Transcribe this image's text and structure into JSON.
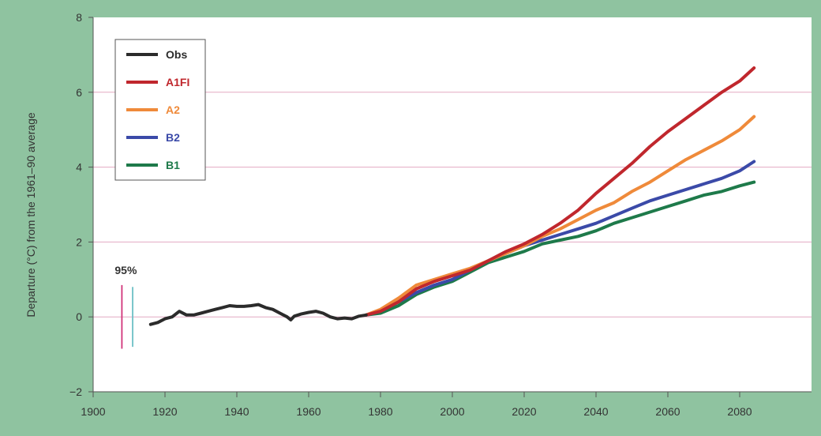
{
  "chart_data": {
    "type": "line",
    "title": "",
    "xlabel": "",
    "ylabel": "Departure (°C) from the 1961–90 average",
    "xlim": [
      1900,
      2100
    ],
    "ylim": [
      -2,
      8
    ],
    "x_ticks": [
      1900,
      1920,
      1940,
      1960,
      1980,
      2000,
      2020,
      2040,
      2060,
      2080
    ],
    "y_ticks": [
      -2,
      0,
      2,
      4,
      6,
      8
    ],
    "grid": "horizontal",
    "legend_position": "top-left",
    "series": [
      {
        "name": "Obs",
        "color": "#2b2b2b",
        "points": [
          [
            1916,
            -0.2
          ],
          [
            1918,
            -0.15
          ],
          [
            1920,
            -0.05
          ],
          [
            1922,
            0.0
          ],
          [
            1924,
            0.15
          ],
          [
            1926,
            0.05
          ],
          [
            1928,
            0.05
          ],
          [
            1930,
            0.1
          ],
          [
            1932,
            0.15
          ],
          [
            1934,
            0.2
          ],
          [
            1936,
            0.25
          ],
          [
            1938,
            0.3
          ],
          [
            1940,
            0.28
          ],
          [
            1942,
            0.28
          ],
          [
            1944,
            0.3
          ],
          [
            1946,
            0.33
          ],
          [
            1948,
            0.25
          ],
          [
            1950,
            0.2
          ],
          [
            1952,
            0.1
          ],
          [
            1954,
            0.0
          ],
          [
            1955,
            -0.08
          ],
          [
            1956,
            0.02
          ],
          [
            1958,
            0.08
          ],
          [
            1960,
            0.12
          ],
          [
            1962,
            0.15
          ],
          [
            1964,
            0.1
          ],
          [
            1966,
            0.0
          ],
          [
            1968,
            -0.05
          ],
          [
            1970,
            -0.03
          ],
          [
            1972,
            -0.05
          ],
          [
            1974,
            0.02
          ],
          [
            1976,
            0.05
          ]
        ]
      },
      {
        "name": "A1FI",
        "color": "#c0272d",
        "points": [
          [
            1976,
            0.05
          ],
          [
            1980,
            0.15
          ],
          [
            1985,
            0.4
          ],
          [
            1990,
            0.75
          ],
          [
            1995,
            0.95
          ],
          [
            2000,
            1.1
          ],
          [
            2005,
            1.25
          ],
          [
            2010,
            1.5
          ],
          [
            2015,
            1.75
          ],
          [
            2020,
            1.95
          ],
          [
            2025,
            2.2
          ],
          [
            2030,
            2.5
          ],
          [
            2035,
            2.85
          ],
          [
            2040,
            3.3
          ],
          [
            2045,
            3.7
          ],
          [
            2050,
            4.1
          ],
          [
            2055,
            4.55
          ],
          [
            2060,
            4.95
          ],
          [
            2065,
            5.3
          ],
          [
            2070,
            5.65
          ],
          [
            2075,
            6.0
          ],
          [
            2080,
            6.3
          ],
          [
            2084,
            6.65
          ]
        ]
      },
      {
        "name": "A2",
        "color": "#ef8a3a",
        "points": [
          [
            1976,
            0.05
          ],
          [
            1980,
            0.2
          ],
          [
            1985,
            0.5
          ],
          [
            1990,
            0.85
          ],
          [
            1995,
            1.0
          ],
          [
            2000,
            1.15
          ],
          [
            2005,
            1.3
          ],
          [
            2010,
            1.5
          ],
          [
            2015,
            1.7
          ],
          [
            2020,
            1.9
          ],
          [
            2025,
            2.15
          ],
          [
            2030,
            2.35
          ],
          [
            2035,
            2.6
          ],
          [
            2040,
            2.85
          ],
          [
            2045,
            3.05
          ],
          [
            2050,
            3.35
          ],
          [
            2055,
            3.6
          ],
          [
            2060,
            3.9
          ],
          [
            2065,
            4.2
          ],
          [
            2070,
            4.45
          ],
          [
            2075,
            4.7
          ],
          [
            2080,
            5.0
          ],
          [
            2084,
            5.35
          ]
        ]
      },
      {
        "name": "B2",
        "color": "#3b4aa8",
        "points": [
          [
            1976,
            0.05
          ],
          [
            1980,
            0.15
          ],
          [
            1985,
            0.4
          ],
          [
            1990,
            0.65
          ],
          [
            1995,
            0.85
          ],
          [
            2000,
            1.0
          ],
          [
            2005,
            1.25
          ],
          [
            2010,
            1.5
          ],
          [
            2015,
            1.7
          ],
          [
            2020,
            1.9
          ],
          [
            2025,
            2.05
          ],
          [
            2030,
            2.2
          ],
          [
            2035,
            2.35
          ],
          [
            2040,
            2.5
          ],
          [
            2045,
            2.7
          ],
          [
            2050,
            2.9
          ],
          [
            2055,
            3.1
          ],
          [
            2060,
            3.25
          ],
          [
            2065,
            3.4
          ],
          [
            2070,
            3.55
          ],
          [
            2075,
            3.7
          ],
          [
            2080,
            3.9
          ],
          [
            2084,
            4.15
          ]
        ]
      },
      {
        "name": "B1",
        "color": "#1e7a4a",
        "points": [
          [
            1976,
            0.05
          ],
          [
            1980,
            0.1
          ],
          [
            1985,
            0.3
          ],
          [
            1990,
            0.6
          ],
          [
            1995,
            0.8
          ],
          [
            2000,
            0.95
          ],
          [
            2005,
            1.2
          ],
          [
            2010,
            1.45
          ],
          [
            2015,
            1.6
          ],
          [
            2020,
            1.75
          ],
          [
            2025,
            1.95
          ],
          [
            2030,
            2.05
          ],
          [
            2035,
            2.15
          ],
          [
            2040,
            2.3
          ],
          [
            2045,
            2.5
          ],
          [
            2050,
            2.65
          ],
          [
            2055,
            2.8
          ],
          [
            2060,
            2.95
          ],
          [
            2065,
            3.1
          ],
          [
            2070,
            3.25
          ],
          [
            2075,
            3.35
          ],
          [
            2080,
            3.5
          ],
          [
            2084,
            3.6
          ]
        ]
      }
    ],
    "annotations": [
      {
        "label": "95%",
        "bars": [
          {
            "x": 1908,
            "y_low": -0.85,
            "y_high": 0.85,
            "color": "#d1347a"
          },
          {
            "x": 1911,
            "y_low": -0.8,
            "y_high": 0.8,
            "color": "#6cc0c6"
          }
        ]
      }
    ]
  }
}
